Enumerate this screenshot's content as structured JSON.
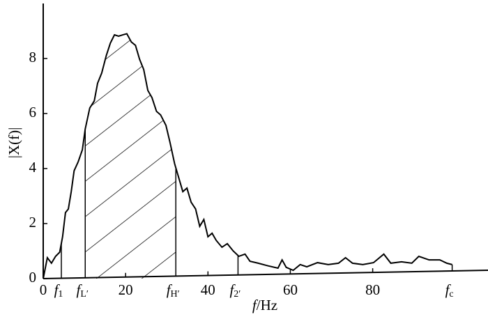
{
  "chart_data": {
    "type": "line",
    "ylabel": "|X(f)|",
    "xlabel": {
      "var": "f",
      "unit": "/Hz"
    },
    "color": "#000000",
    "xlim": [
      0,
      108
    ],
    "ylim": [
      0,
      10
    ],
    "xticks": [
      0,
      20,
      40,
      60,
      80
    ],
    "yticks": [
      0,
      2,
      4,
      6,
      8
    ],
    "x": [
      0,
      1,
      2,
      3,
      4,
      4.7,
      5.4,
      6.1,
      6.8,
      7.5,
      8.5,
      9.5,
      10.2,
      11.3,
      12.4,
      13.2,
      14.2,
      15.3,
      16.3,
      17.3,
      18.3,
      19.3,
      20.3,
      21.4,
      22.4,
      23.4,
      24.4,
      25.4,
      26.4,
      27.5,
      28.5,
      29.8,
      30.8,
      31.9,
      32.9,
      33.9,
      34.9,
      35.9,
      37,
      38,
      39,
      40,
      41,
      42,
      43.4,
      44.7,
      46.1,
      47.5,
      49,
      50.2,
      52.2,
      54.7,
      57,
      58,
      59,
      60.7,
      62.4,
      64,
      66.6,
      69.2,
      71.7,
      73.4,
      75.1,
      77.6,
      80.2,
      82.7,
      84.4,
      87,
      89.5,
      91.2,
      93.7,
      96.3,
      98,
      99.3
    ],
    "values": [
      0,
      0.76,
      0.56,
      0.81,
      0.96,
      1.52,
      2.4,
      2.53,
      3.16,
      3.92,
      4.25,
      4.68,
      5.44,
      6.2,
      6.46,
      7.1,
      7.47,
      8.1,
      8.56,
      8.86,
      8.81,
      8.86,
      8.9,
      8.6,
      8.48,
      7.97,
      7.6,
      6.84,
      6.58,
      6.08,
      5.95,
      5.57,
      4.94,
      4.18,
      3.67,
      3.16,
      3.29,
      2.78,
      2.53,
      1.9,
      2.15,
      1.52,
      1.65,
      1.39,
      1.14,
      1.27,
      1.01,
      0.81,
      0.89,
      0.63,
      0.56,
      0.46,
      0.38,
      0.68,
      0.41,
      0.3,
      0.51,
      0.43,
      0.58,
      0.51,
      0.56,
      0.76,
      0.56,
      0.51,
      0.58,
      0.89,
      0.56,
      0.61,
      0.56,
      0.81,
      0.68,
      0.68,
      0.56,
      0.51
    ],
    "annotations": [
      {
        "value": 4.4,
        "label": "f",
        "sub": "1"
      },
      {
        "value": 10.2,
        "label": "f",
        "sub": "L′"
      },
      {
        "value": 32.2,
        "label": "f",
        "sub": "H′"
      },
      {
        "value": 47.3,
        "label": "f",
        "sub": "2′"
      },
      {
        "value": 99.3,
        "label": "f",
        "sub": "c"
      }
    ]
  }
}
